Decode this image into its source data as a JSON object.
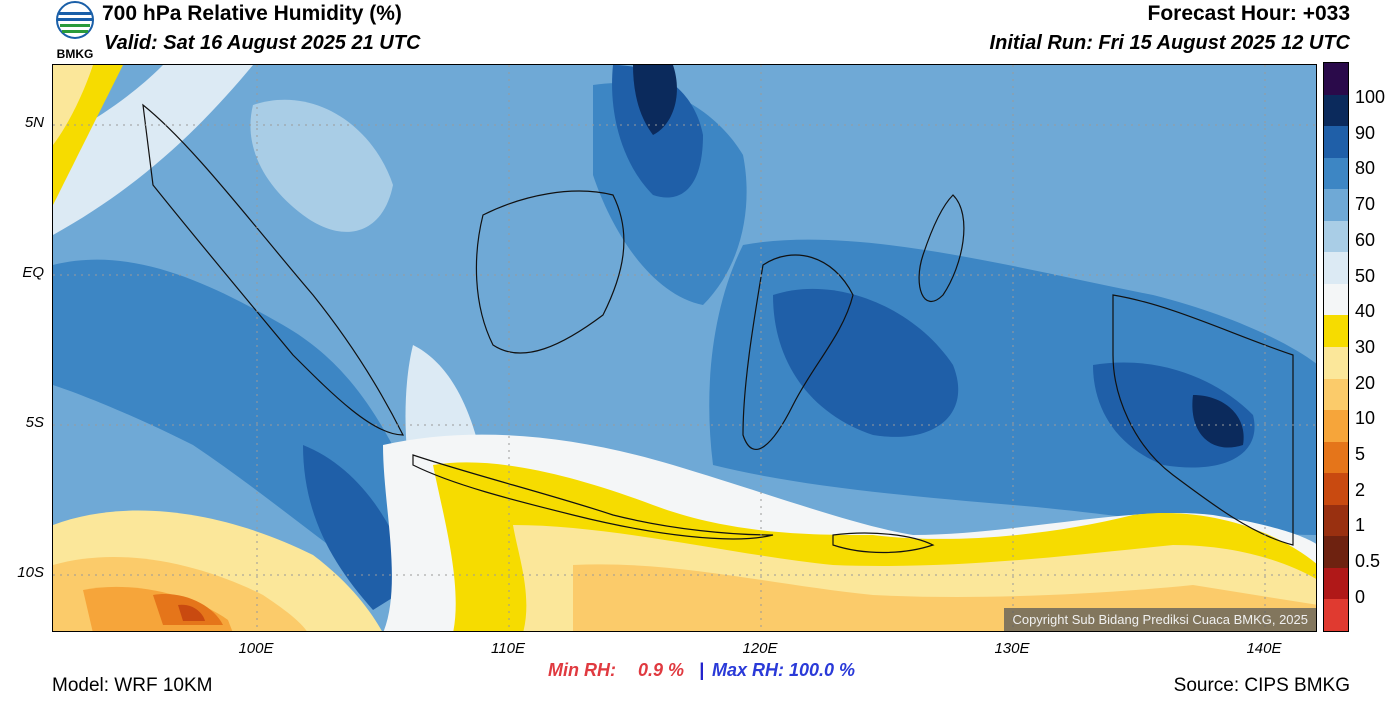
{
  "header": {
    "title": "700 hPa Relative Humidity (%)",
    "valid": "Valid: Sat 16 August 2025 21 UTC",
    "forecast_hour": "Forecast Hour: +033",
    "initial_run": "Initial Run: Fri 15 August 2025 12 UTC"
  },
  "logo": {
    "text": "BMKG"
  },
  "map": {
    "lat_labels": [
      "5N",
      "EQ",
      "5S",
      "10S"
    ],
    "lon_labels": [
      "100E",
      "110E",
      "120E",
      "130E",
      "140E"
    ],
    "copyright": "Copyright Sub Bidang Prediksi Cuaca BMKG, 2025"
  },
  "colorbar": {
    "labels": [
      "100",
      "90",
      "80",
      "70",
      "60",
      "50",
      "40",
      "30",
      "20",
      "10",
      "5",
      "2",
      "1",
      "0.5",
      "0"
    ],
    "colors": [
      "#2a0a4a",
      "#0b2a5c",
      "#1f5fa8",
      "#3d86c4",
      "#6fa9d6",
      "#a9cde6",
      "#dceaf4",
      "#f4f6f7",
      "#f6dc00",
      "#fbe79a",
      "#fbcb6a",
      "#f6a53a",
      "#e5751a",
      "#c94a10",
      "#993010",
      "#6e2210",
      "#b01818",
      "#e03a30"
    ]
  },
  "stats": {
    "min_label": "Min RH:",
    "min_value": "0.9 %",
    "separator": "|",
    "max_label": "Max RH: 100.0 %"
  },
  "footer": {
    "model": "Model: WRF 10KM",
    "source": "Source: CIPS BMKG"
  }
}
